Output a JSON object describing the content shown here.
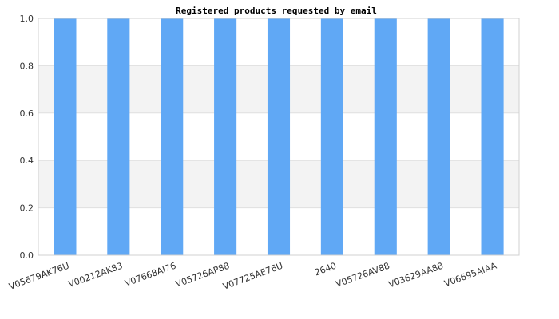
{
  "chart_data": {
    "type": "bar",
    "title": "Registered products requested by email",
    "xlabel": "",
    "ylabel": "",
    "categories": [
      "V05679AK76U",
      "V00212AK83",
      "V07668AI76",
      "V05726AP88",
      "V07725AE76U",
      "2640",
      "V05726AV88",
      "V03629AA88",
      "V06695AIAA"
    ],
    "values": [
      1.0,
      1.0,
      1.0,
      1.0,
      1.0,
      1.0,
      1.0,
      1.0,
      1.0
    ],
    "ylim": [
      0,
      1.0
    ],
    "yticks": [
      "0.0",
      "0.2",
      "0.4",
      "0.6",
      "0.8",
      "1.0"
    ],
    "grid": "horizontal bands",
    "legend": "none",
    "colors": {
      "bar": "#60a8f5",
      "band": "#f3f3f3",
      "grid": "#e0e0e0",
      "axis": "#d0d0d0"
    }
  }
}
